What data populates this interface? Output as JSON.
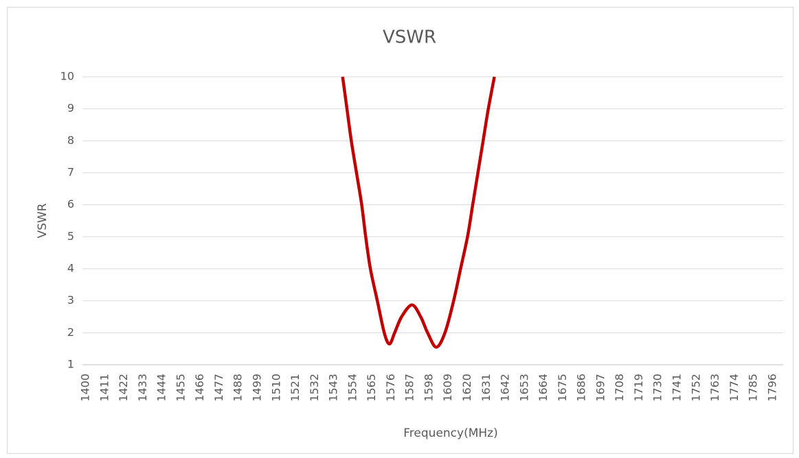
{
  "chart_data": {
    "type": "line",
    "title": "VSWR",
    "x_label": "Frequency(MHz)",
    "y_label": "VSWR",
    "xlim": [
      1398,
      1802
    ],
    "xticks": [
      1400,
      1411,
      1422,
      1433,
      1444,
      1455,
      1466,
      1477,
      1488,
      1499,
      1510,
      1521,
      1532,
      1543,
      1554,
      1565,
      1576,
      1587,
      1598,
      1609,
      1620,
      1631,
      1642,
      1653,
      1664,
      1675,
      1686,
      1697,
      1708,
      1719,
      1730,
      1741,
      1752,
      1763,
      1774,
      1785,
      1796
    ],
    "ylim": [
      1,
      10
    ],
    "yticks": [
      1,
      2,
      3,
      4,
      5,
      6,
      7,
      8,
      9,
      10
    ],
    "grid": true,
    "series": [
      {
        "name": "VSWR",
        "color": "#c00000",
        "x": [
          1548,
          1550.5,
          1553,
          1556,
          1559,
          1561.3,
          1564,
          1568,
          1572,
          1575,
          1578,
          1582,
          1588,
          1593,
          1597,
          1602,
          1607,
          1612,
          1616,
          1620,
          1623,
          1626,
          1629,
          1632,
          1635.5
        ],
        "values": [
          10,
          9,
          8,
          7,
          6,
          5,
          4,
          3,
          2,
          1.65,
          2,
          2.5,
          2.87,
          2.5,
          2,
          1.55,
          2,
          3,
          4,
          5,
          6,
          7,
          8,
          9,
          10
        ]
      }
    ]
  }
}
